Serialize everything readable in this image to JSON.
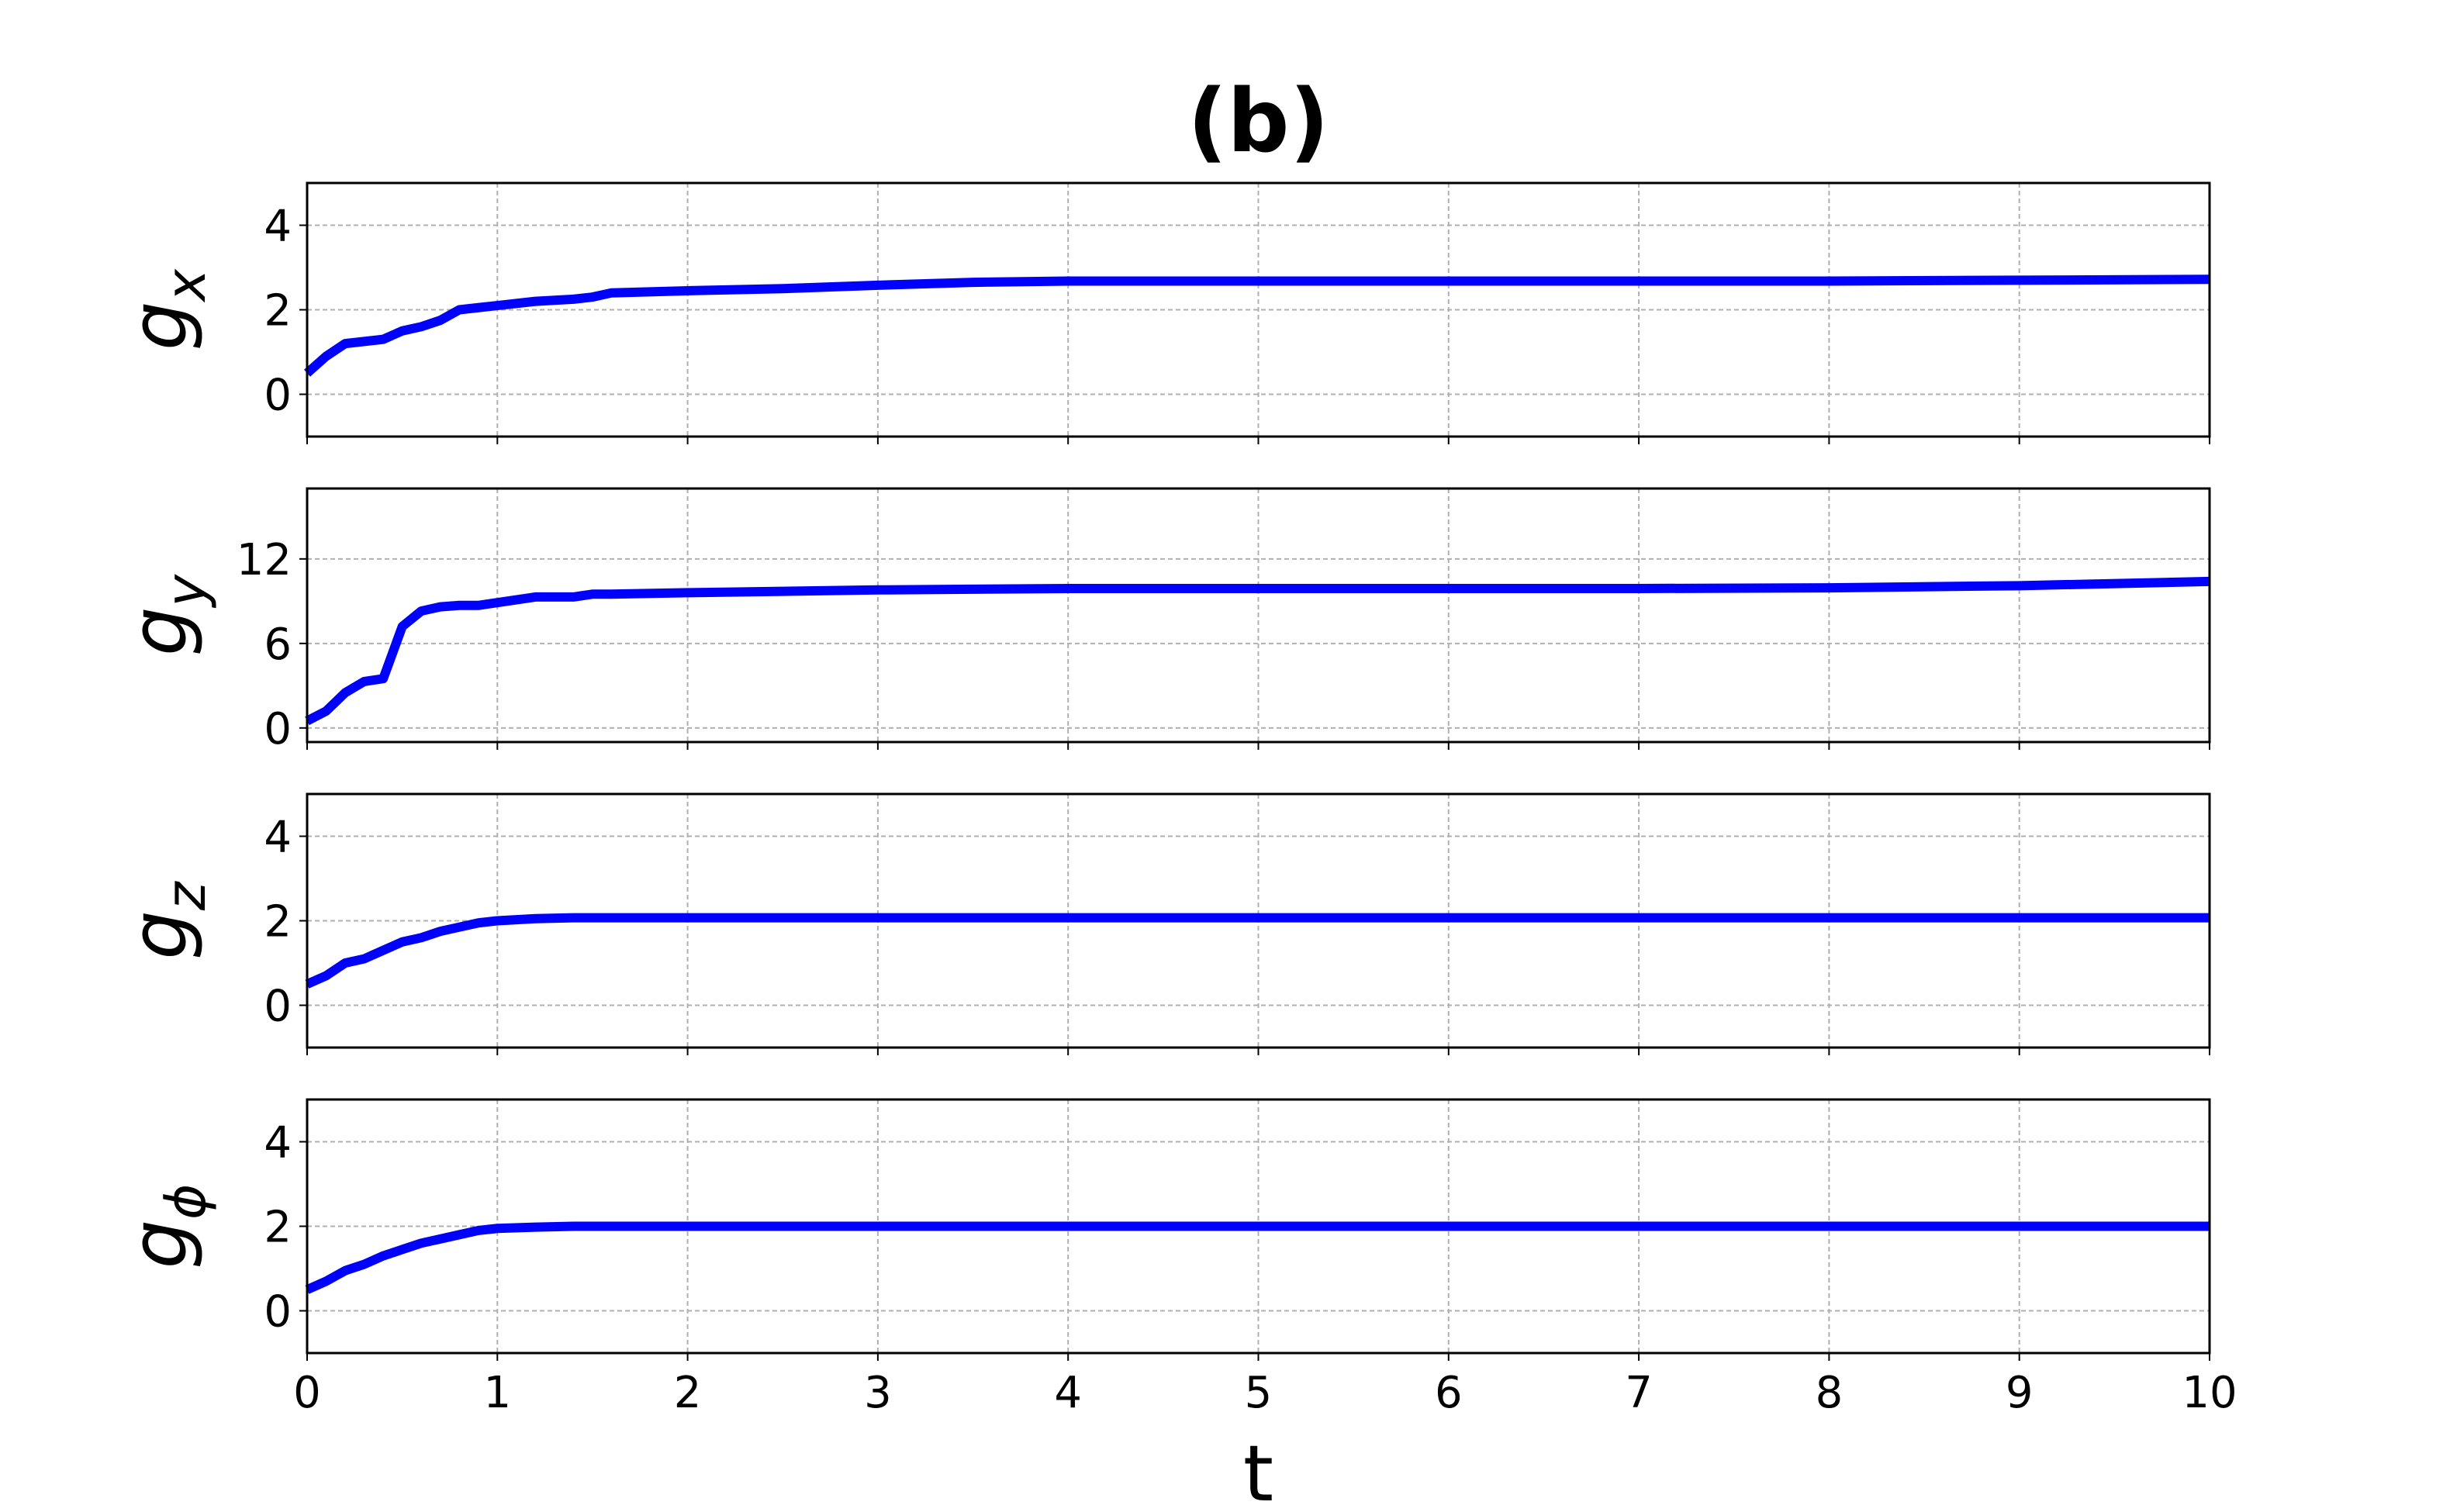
{
  "chart_data": [
    {
      "type": "line",
      "title": "(b)",
      "ylabel": "g",
      "ylabel_sub": "x",
      "x": [
        0,
        0.1,
        0.2,
        0.3,
        0.4,
        0.5,
        0.6,
        0.7,
        0.8,
        0.9,
        1,
        1.2,
        1.4,
        1.5,
        1.6,
        2,
        2.5,
        3,
        3.5,
        4,
        5,
        6,
        7,
        8,
        9,
        10
      ],
      "series": [
        {
          "color": "#0000ff",
          "values": [
            0.5,
            0.9,
            1.2,
            1.25,
            1.3,
            1.5,
            1.6,
            1.75,
            2.0,
            2.05,
            2.1,
            2.2,
            2.25,
            2.3,
            2.4,
            2.45,
            2.5,
            2.58,
            2.65,
            2.68,
            2.68,
            2.68,
            2.68,
            2.68,
            2.7,
            2.72
          ]
        }
      ],
      "xlim": [
        0,
        10
      ],
      "xticks": [
        0,
        1,
        2,
        3,
        4,
        5,
        6,
        7,
        8,
        9,
        10
      ],
      "ylim": [
        -1,
        5
      ],
      "yticks": [
        0,
        2,
        4
      ],
      "grid": true
    },
    {
      "type": "line",
      "ylabel": "g",
      "ylabel_sub": "y",
      "x": [
        0,
        0.1,
        0.2,
        0.3,
        0.4,
        0.5,
        0.6,
        0.7,
        0.8,
        0.9,
        1,
        1.2,
        1.4,
        1.5,
        1.6,
        2,
        2.5,
        3,
        3.5,
        4,
        5,
        6,
        7,
        8,
        9,
        10
      ],
      "series": [
        {
          "color": "#0000ff",
          "values": [
            0.5,
            1.2,
            2.5,
            3.3,
            3.5,
            7.2,
            8.3,
            8.6,
            8.7,
            8.7,
            8.9,
            9.3,
            9.3,
            9.5,
            9.5,
            9.6,
            9.7,
            9.8,
            9.85,
            9.9,
            9.9,
            9.9,
            9.9,
            9.95,
            10.1,
            10.4
          ]
        }
      ],
      "xlim": [
        0,
        10
      ],
      "xticks": [
        0,
        1,
        2,
        3,
        4,
        5,
        6,
        7,
        8,
        9,
        10
      ],
      "ylim": [
        -1,
        17
      ],
      "yticks": [
        0,
        6,
        12
      ],
      "grid": true
    },
    {
      "type": "line",
      "ylabel": "g",
      "ylabel_sub": "z",
      "x": [
        0,
        0.1,
        0.2,
        0.3,
        0.4,
        0.5,
        0.6,
        0.7,
        0.8,
        0.9,
        1,
        1.2,
        1.4,
        1.5,
        1.6,
        2,
        2.5,
        3,
        3.5,
        4,
        5,
        6,
        7,
        8,
        9,
        10
      ],
      "series": [
        {
          "color": "#0000ff",
          "values": [
            0.5,
            0.7,
            1.0,
            1.1,
            1.3,
            1.5,
            1.6,
            1.75,
            1.85,
            1.95,
            2.0,
            2.05,
            2.07,
            2.07,
            2.07,
            2.07,
            2.07,
            2.07,
            2.07,
            2.07,
            2.07,
            2.07,
            2.07,
            2.07,
            2.07,
            2.07
          ]
        }
      ],
      "xlim": [
        0,
        10
      ],
      "xticks": [
        0,
        1,
        2,
        3,
        4,
        5,
        6,
        7,
        8,
        9,
        10
      ],
      "ylim": [
        -1,
        5
      ],
      "yticks": [
        0,
        2,
        4
      ],
      "grid": true
    },
    {
      "type": "line",
      "ylabel": "g",
      "ylabel_sub": "ϕ",
      "xlabel": "t",
      "x": [
        0,
        0.1,
        0.2,
        0.3,
        0.4,
        0.5,
        0.6,
        0.7,
        0.8,
        0.9,
        1,
        1.2,
        1.4,
        1.5,
        1.6,
        2,
        2.5,
        3,
        3.5,
        4,
        5,
        6,
        7,
        8,
        9,
        10
      ],
      "series": [
        {
          "color": "#0000ff",
          "values": [
            0.5,
            0.7,
            0.95,
            1.1,
            1.3,
            1.45,
            1.6,
            1.7,
            1.8,
            1.9,
            1.95,
            1.98,
            2.0,
            2.0,
            2.0,
            2.0,
            2.0,
            2.0,
            2.0,
            2.0,
            2.0,
            2.0,
            2.0,
            2.0,
            2.0,
            2.0
          ]
        }
      ],
      "xlim": [
        0,
        10
      ],
      "xticks": [
        0,
        1,
        2,
        3,
        4,
        5,
        6,
        7,
        8,
        9,
        10
      ],
      "ylim": [
        -1,
        5
      ],
      "yticks": [
        0,
        2,
        4
      ],
      "grid": true
    }
  ]
}
